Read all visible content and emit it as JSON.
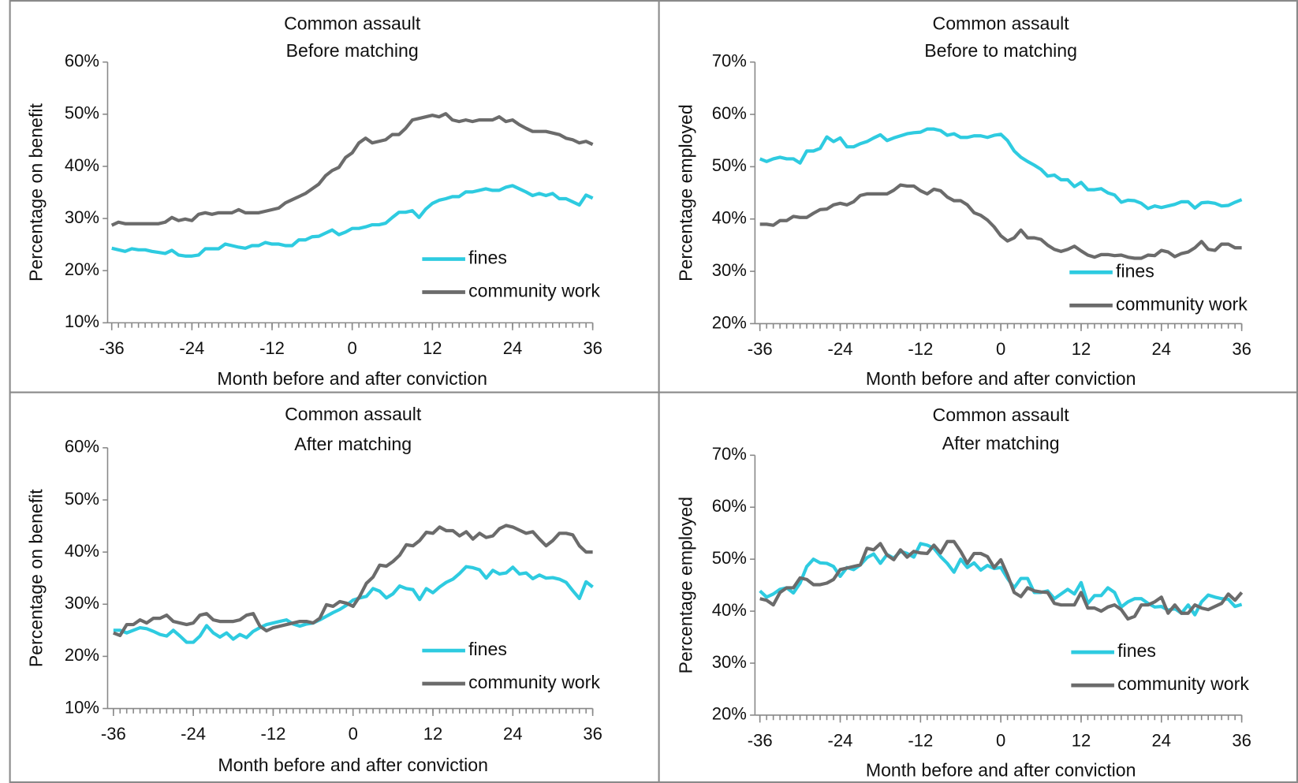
{
  "chart_data": [
    {
      "type": "line",
      "title": "Common assault",
      "subtitle": "Before matching",
      "x_label": "Month before and after conviction",
      "y_label": "Percentage on benefit",
      "x": [
        -36,
        -35,
        -34,
        -33,
        -32,
        -31,
        -30,
        -29,
        -28,
        -27,
        -26,
        -25,
        -24,
        -23,
        -22,
        -21,
        -20,
        -19,
        -18,
        -17,
        -16,
        -15,
        -14,
        -13,
        -12,
        -11,
        -10,
        -9,
        -8,
        -7,
        -6,
        -5,
        -4,
        -3,
        -2,
        -1,
        0,
        1,
        2,
        3,
        4,
        5,
        6,
        7,
        8,
        9,
        10,
        11,
        12,
        13,
        14,
        15,
        16,
        17,
        18,
        19,
        20,
        21,
        22,
        23,
        24,
        25,
        26,
        27,
        28,
        29,
        30,
        31,
        32,
        33,
        34,
        35,
        36
      ],
      "xlim": [
        -36,
        36
      ],
      "xticks": [
        -36,
        -24,
        -12,
        0,
        12,
        24,
        36
      ],
      "ylim": [
        10,
        60
      ],
      "yticks": [
        {
          "value": 10,
          "label": "10%"
        },
        {
          "value": 20,
          "label": "20%"
        },
        {
          "value": 30,
          "label": "30%"
        },
        {
          "value": 40,
          "label": "40%"
        },
        {
          "value": 50,
          "label": "50%"
        },
        {
          "value": 60,
          "label": "60%"
        }
      ],
      "legend": "lower right",
      "series": [
        {
          "name": "fines",
          "color": "#2ecbe0",
          "values": [
            24.3,
            24,
            23.7,
            24.2,
            24,
            24,
            23.7,
            23.5,
            23.3,
            23.9,
            23,
            22.8,
            22.8,
            23,
            24.2,
            24.2,
            24.2,
            25.1,
            24.8,
            24.5,
            24.3,
            24.8,
            24.8,
            25.4,
            25.1,
            25.1,
            24.8,
            24.8,
            25.9,
            25.9,
            26.5,
            26.6,
            27.2,
            27.8,
            26.9,
            27.4,
            28.1,
            28.1,
            28.4,
            28.8,
            28.8,
            29.1,
            30.2,
            31.2,
            31.2,
            31.5,
            30.2,
            31.8,
            32.9,
            33.5,
            33.8,
            34.2,
            34.2,
            35.1,
            35.1,
            35.4,
            35.7,
            35.4,
            35.4,
            36,
            36.3,
            35.7,
            35.1,
            34.4,
            34.8,
            34.4,
            34.8,
            33.8,
            33.8,
            33.2,
            32.6,
            34.5,
            33.9
          ]
        },
        {
          "name": "community work",
          "color": "#6b6b6b",
          "values": [
            28.7,
            29.3,
            29,
            29,
            29,
            29,
            29,
            29,
            29.3,
            30.2,
            29.6,
            29.9,
            29.6,
            30.8,
            31.1,
            30.8,
            31.1,
            31.1,
            31.1,
            31.7,
            31.1,
            31.1,
            31.1,
            31.4,
            31.7,
            32,
            33,
            33.6,
            34.2,
            34.8,
            35.7,
            36.6,
            38.2,
            39.2,
            39.8,
            41.7,
            42.6,
            44.5,
            45.4,
            44.5,
            44.8,
            45.1,
            46.1,
            46.1,
            47.3,
            48.9,
            49.2,
            49.5,
            49.8,
            49.5,
            50.1,
            48.9,
            48.6,
            48.9,
            48.6,
            48.9,
            48.9,
            48.9,
            49.5,
            48.6,
            48.9,
            48,
            47.3,
            46.7,
            46.7,
            46.7,
            46.4,
            46.1,
            45.4,
            45.1,
            44.5,
            44.8,
            44.2
          ]
        }
      ]
    },
    {
      "type": "line",
      "title": "Common assault",
      "subtitle": "Before to matching",
      "x_label": "Month before and after conviction",
      "y_label": "Percentage employed",
      "x": [
        -36,
        -35,
        -34,
        -33,
        -32,
        -31,
        -30,
        -29,
        -28,
        -27,
        -26,
        -25,
        -24,
        -23,
        -22,
        -21,
        -20,
        -19,
        -18,
        -17,
        -16,
        -15,
        -14,
        -13,
        -12,
        -11,
        -10,
        -9,
        -8,
        -7,
        -6,
        -5,
        -4,
        -3,
        -2,
        -1,
        0,
        1,
        2,
        3,
        4,
        5,
        6,
        7,
        8,
        9,
        10,
        11,
        12,
        13,
        14,
        15,
        16,
        17,
        18,
        19,
        20,
        21,
        22,
        23,
        24,
        25,
        26,
        27,
        28,
        29,
        30,
        31,
        32,
        33,
        34,
        35,
        36
      ],
      "xlim": [
        -36,
        36
      ],
      "xticks": [
        -36,
        -24,
        -12,
        0,
        12,
        24,
        36
      ],
      "ylim": [
        20,
        70
      ],
      "yticks": [
        {
          "value": 20,
          "label": "20%"
        },
        {
          "value": 30,
          "label": "30%"
        },
        {
          "value": 40,
          "label": "40%"
        },
        {
          "value": 50,
          "label": "50%"
        },
        {
          "value": 60,
          "label": "60%"
        },
        {
          "value": 70,
          "label": "70%"
        }
      ],
      "legend": "lower right",
      "series": [
        {
          "name": "fines",
          "color": "#2ecbe0",
          "values": [
            51.5,
            51,
            51.5,
            51.8,
            51.5,
            51.5,
            50.7,
            53,
            53,
            53.5,
            55.7,
            54.8,
            55.5,
            53.8,
            53.8,
            54.4,
            54.8,
            55.5,
            56.1,
            55,
            55.5,
            55.9,
            56.3,
            56.5,
            56.6,
            57.2,
            57.2,
            56.9,
            56,
            56.3,
            55.6,
            55.6,
            55.9,
            55.9,
            55.6,
            56,
            56.2,
            55,
            53,
            51.8,
            51,
            50.3,
            49.5,
            48.2,
            48.4,
            47.5,
            47.5,
            46.2,
            47,
            45.6,
            45.6,
            45.8,
            45,
            44.6,
            43.2,
            43.6,
            43.5,
            43,
            42,
            42.5,
            42.2,
            42.5,
            42.8,
            43.3,
            43.3,
            42.1,
            43.1,
            43.2,
            43,
            42.5,
            42.6,
            43.2,
            43.7
          ]
        },
        {
          "name": "community work",
          "color": "#6b6b6b",
          "values": [
            39,
            39,
            38.8,
            39.7,
            39.7,
            40.5,
            40.3,
            40.3,
            41.1,
            41.8,
            41.9,
            42.7,
            43,
            42.7,
            43.3,
            44.5,
            44.8,
            44.8,
            44.8,
            44.8,
            45.5,
            46.5,
            46.3,
            46.3,
            45.4,
            44.8,
            45.7,
            45.4,
            44.2,
            43.5,
            43.5,
            42.7,
            41.2,
            40.7,
            39.8,
            38.5,
            36.8,
            35.8,
            36.4,
            37.9,
            36.4,
            36.4,
            36.1,
            35,
            34.2,
            33.8,
            34.2,
            34.8,
            33.9,
            33.1,
            32.7,
            33.2,
            33.2,
            33,
            33.1,
            32.7,
            32.5,
            32.5,
            33.1,
            33,
            34,
            33.7,
            32.8,
            33.4,
            33.7,
            34.5,
            35.7,
            34.2,
            34,
            35.2,
            35.2,
            34.5,
            34.5
          ]
        }
      ]
    },
    {
      "type": "line",
      "title": "Common assault",
      "subtitle": "After matching",
      "x_label": "Month before and after conviction",
      "y_label": "Percentage on benefit",
      "x": [
        -36,
        -35,
        -34,
        -33,
        -32,
        -31,
        -30,
        -29,
        -28,
        -27,
        -26,
        -25,
        -24,
        -23,
        -22,
        -21,
        -20,
        -19,
        -18,
        -17,
        -16,
        -15,
        -14,
        -13,
        -12,
        -11,
        -10,
        -9,
        -8,
        -7,
        -6,
        -5,
        -4,
        -3,
        -2,
        -1,
        0,
        1,
        2,
        3,
        4,
        5,
        6,
        7,
        8,
        9,
        10,
        11,
        12,
        13,
        14,
        15,
        16,
        17,
        18,
        19,
        20,
        21,
        22,
        23,
        24,
        25,
        26,
        27,
        28,
        29,
        30,
        31,
        32,
        33,
        34,
        35,
        36
      ],
      "xlim": [
        -36,
        36
      ],
      "xticks": [
        -36,
        -24,
        -12,
        0,
        12,
        24,
        36
      ],
      "ylim": [
        10,
        60
      ],
      "yticks": [
        {
          "value": 10,
          "label": "10%"
        },
        {
          "value": 20,
          "label": "20%"
        },
        {
          "value": 30,
          "label": "30%"
        },
        {
          "value": 40,
          "label": "40%"
        },
        {
          "value": 50,
          "label": "50%"
        },
        {
          "value": 60,
          "label": "60%"
        }
      ],
      "legend": "lower right",
      "series": [
        {
          "name": "fines",
          "color": "#2ecbe0",
          "values": [
            25,
            25,
            24.5,
            25,
            25.5,
            25.3,
            24.8,
            24.2,
            23.9,
            25,
            23.9,
            22.7,
            22.7,
            23.9,
            25.9,
            24.5,
            23.7,
            24.5,
            23.3,
            24.2,
            23.6,
            24.8,
            25.5,
            26.1,
            26.4,
            26.7,
            27,
            26.2,
            25.8,
            26.2,
            26.4,
            27,
            27.7,
            28.4,
            29,
            29.8,
            30.8,
            31.2,
            31.5,
            33,
            32.5,
            31.2,
            32,
            33.5,
            33,
            32.8,
            30.9,
            33,
            32.2,
            33.3,
            34.2,
            34.8,
            35.9,
            37.2,
            37,
            36.6,
            35,
            36.5,
            35.8,
            36,
            37.1,
            35.8,
            36,
            34.9,
            35.6,
            35,
            35.1,
            34.8,
            34.2,
            32.6,
            31.1,
            34.3,
            33.3
          ]
        },
        {
          "name": "community work",
          "color": "#6b6b6b",
          "values": [
            24.5,
            24,
            26.1,
            26.1,
            27,
            26.4,
            27.3,
            27.3,
            27.9,
            26.7,
            26.4,
            26.1,
            26.4,
            27.9,
            28.2,
            27,
            26.7,
            26.7,
            26.7,
            27,
            27.9,
            28.2,
            25.8,
            24.9,
            25.5,
            25.8,
            26.1,
            26.4,
            26.7,
            26.7,
            26.4,
            27.3,
            29.9,
            29.6,
            30.5,
            30.2,
            29.6,
            31.5,
            34,
            35.2,
            37.5,
            37.3,
            38.2,
            39.4,
            41.4,
            41.2,
            42.2,
            43.8,
            43.6,
            44.8,
            44.1,
            44.1,
            43.1,
            43.9,
            42.5,
            43.6,
            42.8,
            43.1,
            44.5,
            45.1,
            44.8,
            44.2,
            43.6,
            43.9,
            42.5,
            41.2,
            42.2,
            43.6,
            43.6,
            43.3,
            41.2,
            40,
            40
          ]
        }
      ]
    },
    {
      "type": "line",
      "title": "Common assault",
      "subtitle": "After matching",
      "x_label": "Month before and after conviction",
      "y_label": "Percentage employed",
      "x": [
        -36,
        -35,
        -34,
        -33,
        -32,
        -31,
        -30,
        -29,
        -28,
        -27,
        -26,
        -25,
        -24,
        -23,
        -22,
        -21,
        -20,
        -19,
        -18,
        -17,
        -16,
        -15,
        -14,
        -13,
        -12,
        -11,
        -10,
        -9,
        -8,
        -7,
        -6,
        -5,
        -4,
        -3,
        -2,
        -1,
        0,
        1,
        2,
        3,
        4,
        5,
        6,
        7,
        8,
        9,
        10,
        11,
        12,
        13,
        14,
        15,
        16,
        17,
        18,
        19,
        20,
        21,
        22,
        23,
        24,
        25,
        26,
        27,
        28,
        29,
        30,
        31,
        32,
        33,
        34,
        35,
        36
      ],
      "xlim": [
        -36,
        36
      ],
      "xticks": [
        -36,
        -24,
        -12,
        0,
        12,
        24,
        36
      ],
      "ylim": [
        20,
        70
      ],
      "yticks": [
        {
          "value": 20,
          "label": "20%"
        },
        {
          "value": 30,
          "label": "30%"
        },
        {
          "value": 40,
          "label": "40%"
        },
        {
          "value": 50,
          "label": "50%"
        },
        {
          "value": 60,
          "label": "60%"
        },
        {
          "value": 70,
          "label": "70%"
        }
      ],
      "legend": "lower right",
      "series": [
        {
          "name": "fines",
          "color": "#2ecbe0",
          "values": [
            43.9,
            42.7,
            43.3,
            44.2,
            44.5,
            43.5,
            45.4,
            48.6,
            50,
            49.3,
            49.2,
            48.6,
            46.7,
            48.4,
            48,
            48.9,
            50.3,
            51,
            49.2,
            50.9,
            50.2,
            51.5,
            51.1,
            50.4,
            53,
            52.7,
            52.1,
            50.5,
            49.2,
            47.5,
            50,
            48.4,
            49.3,
            47.9,
            48.8,
            48.2,
            48.4,
            46.3,
            44.5,
            46.3,
            46.3,
            43.6,
            43.6,
            43.9,
            42.4,
            43.3,
            44.2,
            43.3,
            45.5,
            41.5,
            43,
            43,
            44.5,
            43.6,
            40.8,
            41.8,
            42.4,
            42.4,
            41.5,
            40.8,
            40.9,
            40.2,
            40.5,
            39.6,
            41.2,
            39.3,
            41.8,
            43.1,
            42.7,
            42.4,
            42.3,
            40.9,
            41.3
          ]
        },
        {
          "name": "community work",
          "color": "#6b6b6b",
          "values": [
            42.4,
            42.1,
            41.2,
            43.6,
            44.5,
            44.5,
            46.4,
            46.1,
            45.1,
            45.1,
            45.4,
            46.1,
            48,
            48.3,
            48.6,
            48.9,
            52.1,
            51.8,
            53,
            50.8,
            49.9,
            51.8,
            50.4,
            51.5,
            51.2,
            51.1,
            52.7,
            51.2,
            53.4,
            53.4,
            51.5,
            49.2,
            51.1,
            51.1,
            50.5,
            48.4,
            49.9,
            47,
            43.6,
            42.8,
            44.5,
            43.9,
            43.7,
            43.6,
            41.5,
            41.2,
            41.2,
            41.2,
            43.6,
            40.6,
            40.6,
            40,
            40.8,
            41.2,
            40.3,
            38.5,
            39,
            41.2,
            41.2,
            41.8,
            42.7,
            39.6,
            41.2,
            39.6,
            39.6,
            41.2,
            40.6,
            40.3,
            40.9,
            41.5,
            43.3,
            42.1,
            43.6
          ]
        }
      ]
    }
  ]
}
